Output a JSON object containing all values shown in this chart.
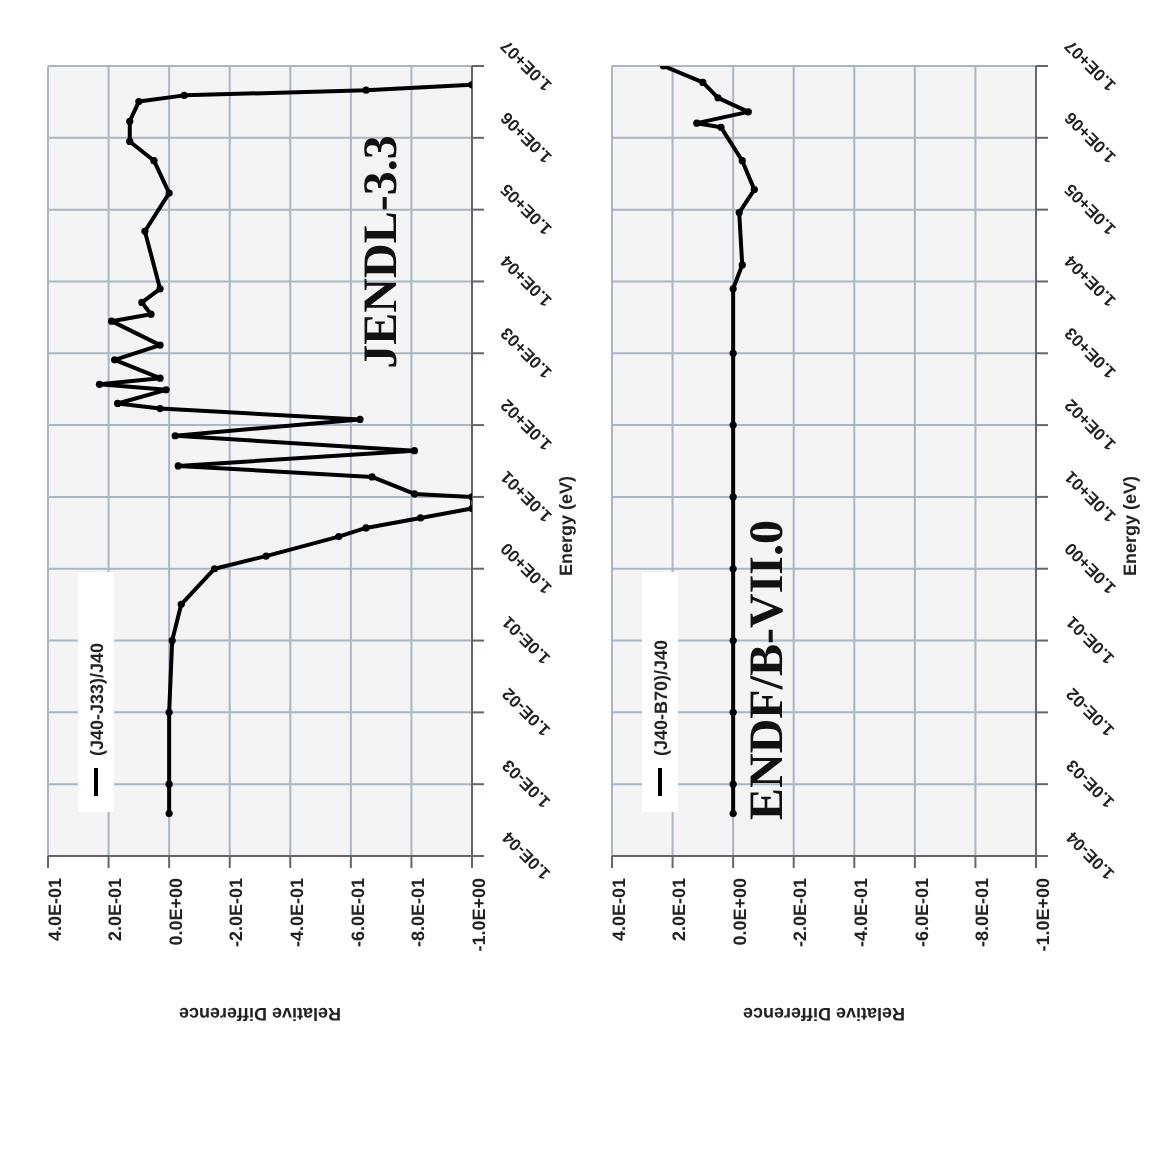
{
  "chart_data": [
    {
      "type": "line",
      "xlabel": "Relative Difference",
      "ylabel": "Energy (eV)",
      "log": "y",
      "grid": true,
      "legend": "bottom left",
      "marker": "circle",
      "annotations": [
        "JENDL-3.3"
      ],
      "ylim": [
        0.0001,
        10000000
      ],
      "yticks": [
        {
          "value": 0.0001,
          "label": "1.0E-04"
        },
        {
          "value": 0.001,
          "label": "1.0E-03"
        },
        {
          "value": 0.01,
          "label": "1.0E-02"
        },
        {
          "value": 0.1,
          "label": "1.0E-01"
        },
        {
          "value": 1,
          "label": "1.0E+00"
        },
        {
          "value": 10,
          "label": "1.0E+01"
        },
        {
          "value": 100,
          "label": "1.0E+02"
        },
        {
          "value": 1000,
          "label": "1.0E+03"
        },
        {
          "value": 10000,
          "label": "1.0E+04"
        },
        {
          "value": 100000,
          "label": "1.0E+05"
        },
        {
          "value": 1000000,
          "label": "1.0E+06"
        },
        {
          "value": 10000000,
          "label": "1.0E+07"
        }
      ],
      "xlim": [
        0.4,
        -1
      ],
      "xticks": [
        {
          "value": 0.4,
          "label": "4.0E-01"
        },
        {
          "value": 0.2,
          "label": "2.0E-01"
        },
        {
          "value": 0,
          "label": "0.0E+00"
        },
        {
          "value": -0.2,
          "label": "-2.0E-01"
        },
        {
          "value": -0.4,
          "label": "-4.0E-01"
        },
        {
          "value": -0.6,
          "label": "-6.0E-01"
        },
        {
          "value": -0.8,
          "label": "-8.0E-01"
        },
        {
          "value": -1,
          "label": "-1.0E+00"
        }
      ],
      "series": [
        {
          "name": "(J40-J33)/J40",
          "color": "#000000",
          "values": [
            0.00039,
            0.001,
            0.01,
            0.1,
            0.32,
            1,
            1.5,
            2.8,
            3.7,
            5.1,
            6.9,
            10,
            11,
            19,
            27,
            44,
            71,
            120,
            170,
            200,
            310,
            370,
            450,
            810,
            1300,
            2800,
            3500,
            5100,
            7900,
            50000,
            170000,
            480000,
            890000,
            1700000,
            3200000,
            3900000,
            4600000,
            5500000
          ],
          "x": [
            0,
            0,
            0,
            -0.01,
            -0.04,
            -0.15,
            -0.32,
            -0.56,
            -0.65,
            -0.83,
            -1,
            -1,
            -0.81,
            -0.67,
            -0.03,
            -0.81,
            -0.02,
            -0.63,
            0.03,
            0.17,
            0.01,
            0.23,
            0.03,
            0.18,
            0.03,
            0.19,
            0.06,
            0.09,
            0.03,
            0.08,
            0,
            0.05,
            0.13,
            0.13,
            0.1,
            -0.05,
            -0.65,
            -1
          ]
        }
      ]
    },
    {
      "type": "line",
      "xlabel": "Relative Difference",
      "ylabel": "Energy (eV)",
      "log": "y",
      "grid": true,
      "legend": "bottom left",
      "marker": "circle",
      "annotations": [
        "ENDF/B-VII.0"
      ],
      "ylim": [
        0.0001,
        10000000
      ],
      "yticks": [
        {
          "value": 0.0001,
          "label": "1.0E-04"
        },
        {
          "value": 0.001,
          "label": "1.0E-03"
        },
        {
          "value": 0.01,
          "label": "1.0E-02"
        },
        {
          "value": 0.1,
          "label": "1.0E-01"
        },
        {
          "value": 1,
          "label": "1.0E+00"
        },
        {
          "value": 10,
          "label": "1.0E+01"
        },
        {
          "value": 100,
          "label": "1.0E+02"
        },
        {
          "value": 1000,
          "label": "1.0E+03"
        },
        {
          "value": 10000,
          "label": "1.0E+04"
        },
        {
          "value": 100000,
          "label": "1.0E+05"
        },
        {
          "value": 1000000,
          "label": "1.0E+06"
        },
        {
          "value": 10000000,
          "label": "1.0E+07"
        }
      ],
      "xlim": [
        0.4,
        -1
      ],
      "xticks": [
        {
          "value": 0.4,
          "label": "4.0E-01"
        },
        {
          "value": 0.2,
          "label": "2.0E-01"
        },
        {
          "value": 0,
          "label": "0.0E+00"
        },
        {
          "value": -0.2,
          "label": "-2.0E-01"
        },
        {
          "value": -0.4,
          "label": "-4.0E-01"
        },
        {
          "value": -0.6,
          "label": "-6.0E-01"
        },
        {
          "value": -0.8,
          "label": "-8.0E-01"
        },
        {
          "value": -1,
          "label": "-1.0E+00"
        }
      ],
      "series": [
        {
          "name": "(J40-B70)/J40",
          "color": "#000000",
          "values": [
            0.00039,
            0.001,
            0.01,
            0.1,
            1,
            10,
            100,
            1000,
            7900,
            17000,
            91000,
            190000,
            480000,
            1400000,
            1600000,
            2300000,
            3600000,
            5900000,
            10000000
          ],
          "x": [
            0,
            0,
            0,
            0,
            0,
            0,
            0,
            0,
            0,
            -0.03,
            -0.02,
            -0.07,
            -0.03,
            0.04,
            0.12,
            -0.05,
            0.05,
            0.1,
            0.23
          ]
        }
      ]
    }
  ]
}
